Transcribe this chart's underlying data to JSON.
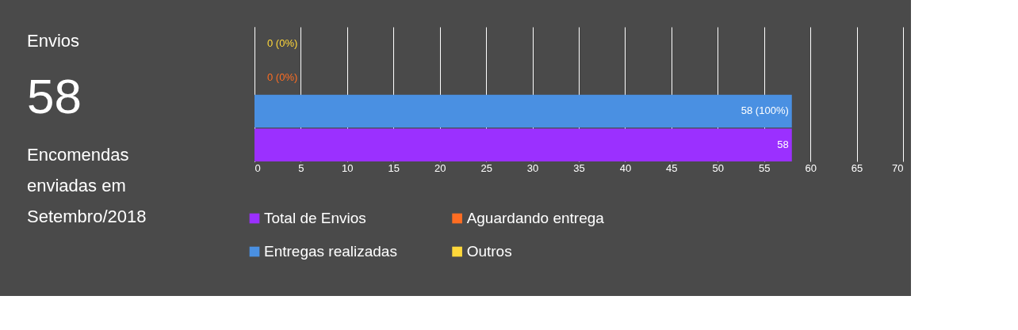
{
  "chart_data": [
    {
      "type": "other",
      "title": "Envios",
      "annotations": [
        "58",
        "Encomendas enviadas em Setembro/2018"
      ]
    },
    {
      "type": "bar",
      "orientation": "horizontal",
      "categories": [
        null,
        null,
        null,
        null
      ],
      "series": [
        {
          "name": "Total de Envios",
          "color": "#9b30ff",
          "values": [
            null,
            null,
            null,
            58
          ],
          "value_labels": [
            null,
            null,
            null,
            "58"
          ]
        },
        {
          "name": "Aguardando entrega",
          "color": "#ff6d22",
          "values": [
            null,
            0,
            null,
            null
          ],
          "value_labels": [
            null,
            "0 (0%)",
            null,
            null
          ]
        },
        {
          "name": "Entregas realizadas",
          "color": "#4a90e2",
          "values": [
            null,
            null,
            58,
            null
          ],
          "value_labels": [
            null,
            null,
            "58 (100%)",
            null
          ]
        },
        {
          "name": "Outros",
          "color": "#ffd83a",
          "values": [
            0,
            null,
            null,
            null
          ],
          "value_labels": [
            "0 (0%)",
            null,
            null,
            null
          ]
        }
      ],
      "xlim": [
        0,
        70
      ],
      "xticks": [
        0,
        5,
        10,
        15,
        20,
        25,
        30,
        35,
        40,
        45,
        50,
        55,
        60,
        65,
        70
      ],
      "grid": "x",
      "legend": "bottom",
      "tick_labels": "x"
    }
  ]
}
